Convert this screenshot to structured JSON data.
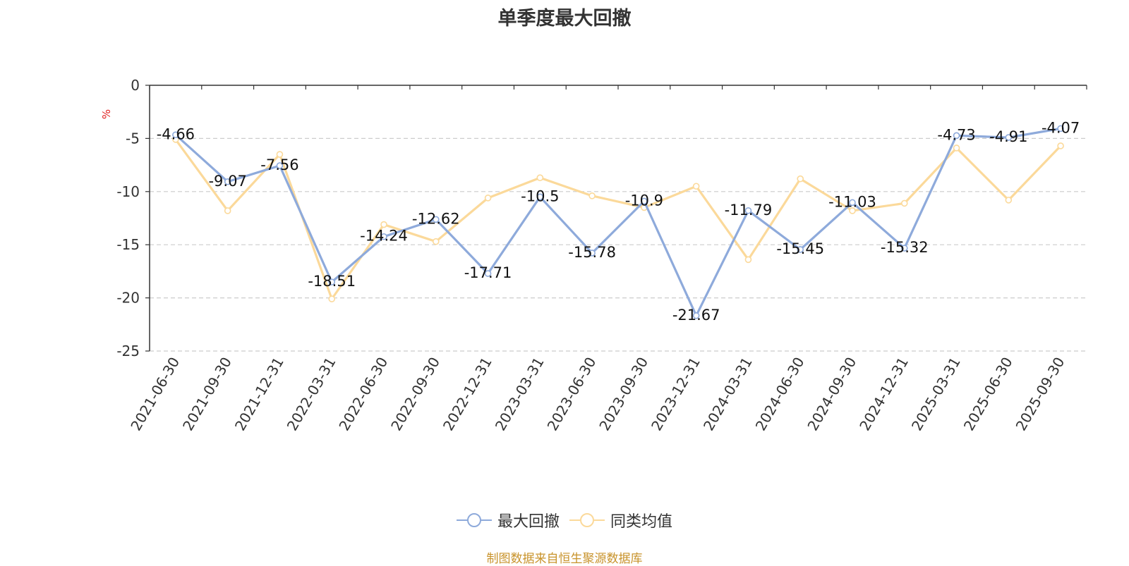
{
  "chart_data": {
    "type": "line",
    "title": "单季度最大回撤",
    "ylabel": "%",
    "ylim": [
      -25,
      0
    ],
    "yticks": [
      0,
      -5,
      -10,
      -15,
      -20,
      -25
    ],
    "grid": true,
    "legend_position": "bottom",
    "categories": [
      "2021-06-30",
      "2021-09-30",
      "2021-12-31",
      "2022-03-31",
      "2022-06-30",
      "2022-09-30",
      "2022-12-31",
      "2023-03-31",
      "2023-06-30",
      "2023-09-30",
      "2023-12-31",
      "2024-03-31",
      "2024-06-30",
      "2024-09-30",
      "2024-12-31",
      "2025-03-31",
      "2025-06-30",
      "2025-09-30"
    ],
    "series": [
      {
        "name": "最大回撤",
        "color": "#8eaadb",
        "labeled": true,
        "values": [
          -4.66,
          -9.07,
          -7.56,
          -18.51,
          -14.24,
          -12.62,
          -17.71,
          -10.5,
          -15.78,
          -10.9,
          -21.67,
          -11.79,
          -15.45,
          -11.03,
          -15.32,
          -4.73,
          -4.91,
          -4.07
        ]
      },
      {
        "name": "同类均值",
        "color": "#fbd99a",
        "labeled": false,
        "values": [
          -5.1,
          -11.8,
          -6.5,
          -20.1,
          -13.1,
          -14.7,
          -10.6,
          -8.7,
          -10.4,
          -11.5,
          -9.5,
          -16.4,
          -8.8,
          -11.8,
          -11.1,
          -5.9,
          -10.8,
          -5.7
        ]
      }
    ]
  },
  "source_note": "制图数据来自恒生聚源数据库"
}
